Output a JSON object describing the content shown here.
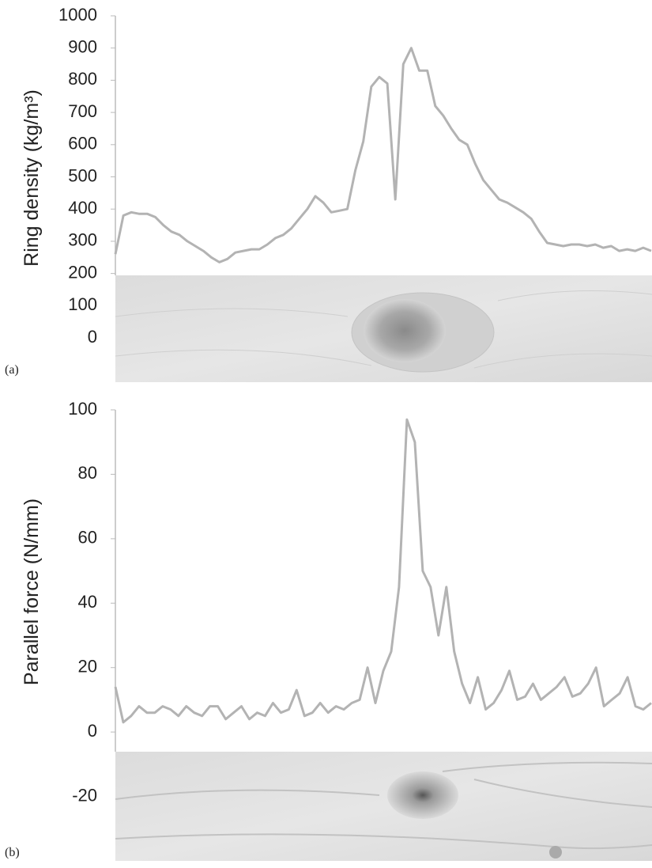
{
  "chart_data": [
    {
      "type": "line",
      "panel_label": "(a)",
      "ylabel": "Ring density (kg/m³)",
      "color": "#b3b3b3",
      "ylim": [
        -135,
        1000
      ],
      "yticks": [
        0,
        100,
        200,
        300,
        400,
        500,
        600,
        700,
        800,
        900,
        1000
      ],
      "values": [
        260,
        380,
        390,
        385,
        385,
        375,
        350,
        330,
        320,
        300,
        285,
        270,
        250,
        235,
        245,
        265,
        270,
        275,
        275,
        290,
        310,
        320,
        340,
        370,
        400,
        440,
        420,
        390,
        395,
        400,
        520,
        610,
        780,
        810,
        790,
        430,
        850,
        900,
        830,
        830,
        720,
        690,
        650,
        615,
        600,
        540,
        490,
        460,
        430,
        420,
        405,
        390,
        370,
        330,
        295,
        290,
        285,
        290,
        290,
        285,
        290,
        280,
        285,
        270,
        275,
        270,
        280,
        270
      ]
    },
    {
      "type": "line",
      "panel_label": "(b)",
      "ylabel": "Parallel force (N/mm)",
      "color": "#b3b3b3",
      "ylim": [
        -40,
        100
      ],
      "yticks": [
        -20,
        0,
        20,
        40,
        60,
        80,
        100
      ],
      "values": [
        14,
        3,
        5,
        8,
        6,
        6,
        8,
        7,
        5,
        8,
        6,
        5,
        8,
        8,
        4,
        6,
        8,
        4,
        6,
        5,
        9,
        6,
        7,
        13,
        5,
        6,
        9,
        6,
        8,
        7,
        9,
        10,
        20,
        9,
        19,
        25,
        45,
        97,
        90,
        50,
        45,
        30,
        45,
        25,
        15,
        9,
        17,
        7,
        9,
        13,
        19,
        10,
        11,
        15,
        10,
        12,
        14,
        17,
        11,
        12,
        15,
        20,
        8,
        10,
        12,
        17,
        8,
        7,
        9
      ]
    }
  ]
}
